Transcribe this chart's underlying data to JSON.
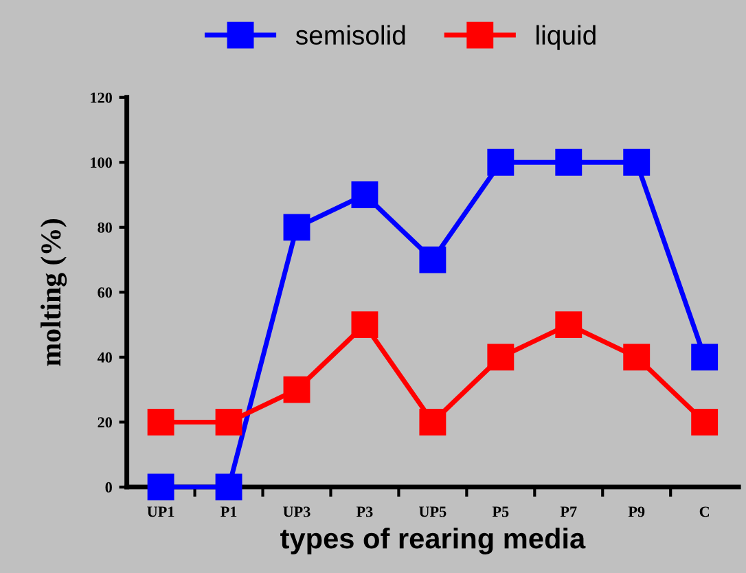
{
  "chart_data": {
    "type": "line",
    "xlabel": "types of rearing media",
    "ylabel": "molting (%)",
    "categories": [
      "UP1",
      "P1",
      "UP3",
      "P3",
      "UP5",
      "P5",
      "P7",
      "P9",
      "C"
    ],
    "series": [
      {
        "name": "semisolid",
        "color": "#0000ff",
        "values": [
          0,
          0,
          80,
          90,
          70,
          100,
          100,
          100,
          40
        ]
      },
      {
        "name": "liquid",
        "color": "#ff0000",
        "values": [
          20,
          20,
          30,
          50,
          20,
          40,
          50,
          40,
          20
        ]
      }
    ],
    "ylim": [
      0,
      120
    ],
    "yticks": [
      0,
      20,
      40,
      60,
      80,
      100,
      120
    ],
    "grid": false,
    "legend": "top",
    "marker": "square",
    "line_style": "solid"
  }
}
